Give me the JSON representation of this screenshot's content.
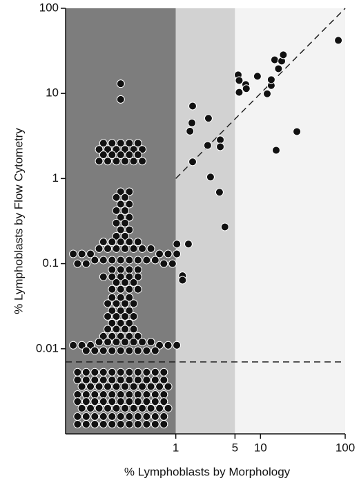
{
  "chart_data": {
    "type": "scatter",
    "xlabel": "% Lymphoblasts by Morphology",
    "ylabel": "% Lymphoblasts by Flow Cytometry",
    "xscale": "log",
    "yscale": "log",
    "xlim": [
      0.05,
      100
    ],
    "ylim": [
      0.001,
      100
    ],
    "xticks": [
      1,
      5,
      10,
      100
    ],
    "yticks": [
      100,
      10,
      1,
      0.1,
      0.01
    ],
    "regions": [
      {
        "to": 1,
        "color": "#7d7d7d"
      },
      {
        "to": 5,
        "color": "#d2d2d2"
      },
      {
        "to": 100,
        "color": "#f3f3f3"
      }
    ],
    "reference_lines": [
      {
        "type": "identity",
        "x": [
          1,
          100
        ]
      },
      {
        "type": "horizontal",
        "y": 0.007
      }
    ],
    "series": [
      {
        "color": "#111111",
        "values": [
          13,
          8.5,
          2.6,
          2.6,
          2.6,
          2.6,
          2.6,
          2.2,
          2.2,
          2.2,
          2.2,
          2.2,
          2.2,
          1.9,
          1.9,
          1.9,
          1.9,
          1.9,
          1.6,
          1.6,
          1.6,
          1.6,
          1.6,
          1.6,
          0.7,
          0.7,
          0.6,
          0.6,
          0.5,
          0.5,
          0.42,
          0.42,
          0.35,
          0.35,
          0.3,
          0.3,
          0.25,
          0.25,
          0.21,
          0.21,
          0.18,
          0.18,
          0.18,
          0.18,
          0.18,
          0.15,
          0.15,
          0.15,
          0.15,
          0.15,
          0.15,
          0.15,
          0.13,
          0.13,
          0.13,
          0.13,
          0.13,
          0.13,
          0.11,
          0.11,
          0.11,
          0.11,
          0.11,
          0.11,
          0.11,
          0.11,
          0.1,
          0.1,
          0.1,
          0.1,
          0.085,
          0.085,
          0.085,
          0.085,
          0.07,
          0.07,
          0.07,
          0.07,
          0.07,
          0.06,
          0.06,
          0.06,
          0.05,
          0.05,
          0.05,
          0.05,
          0.04,
          0.04,
          0.04,
          0.034,
          0.034,
          0.034,
          0.034,
          0.028,
          0.028,
          0.028,
          0.024,
          0.024,
          0.024,
          0.024,
          0.02,
          0.02,
          0.02,
          0.017,
          0.017,
          0.017,
          0.017,
          0.014,
          0.014,
          0.014,
          0.014,
          0.014,
          0.012,
          0.012,
          0.012,
          0.012,
          0.012,
          0.012,
          0.012,
          0.011,
          0.011,
          0.011,
          0.011,
          0.011,
          0.011,
          0.0095,
          0.0095,
          0.0095,
          0.0095,
          0.0095,
          0.0095,
          0.0095,
          0.0095,
          0.0095,
          0.0053,
          0.0053,
          0.0053,
          0.0053,
          0.0053,
          0.0053,
          0.0053,
          0.0053,
          0.0053,
          0.0053,
          0.0053,
          0.0043,
          0.0043,
          0.0043,
          0.0043,
          0.0043,
          0.0043,
          0.0043,
          0.0043,
          0.0043,
          0.0043,
          0.0043,
          0.0036,
          0.0036,
          0.0036,
          0.0036,
          0.0036,
          0.0036,
          0.0036,
          0.0036,
          0.0036,
          0.0036,
          0.0036,
          0.0029,
          0.0029,
          0.0029,
          0.0029,
          0.0029,
          0.0029,
          0.0029,
          0.0029,
          0.0029,
          0.0029,
          0.0029,
          0.0024,
          0.0024,
          0.0024,
          0.0024,
          0.0024,
          0.0024,
          0.0024,
          0.0024,
          0.0024,
          0.0024,
          0.0024,
          0.002,
          0.002,
          0.002,
          0.002,
          0.002,
          0.002,
          0.002,
          0.002,
          0.002,
          0.002,
          0.002,
          0.0016,
          0.0016,
          0.0016,
          0.0016,
          0.0016,
          0.0016,
          0.0016,
          0.0016,
          0.0016,
          0.0016,
          0.0016,
          0.0013,
          0.0013,
          0.0013,
          0.0013,
          0.0013,
          0.0013,
          0.0013,
          0.0013,
          0.0013,
          0.0013,
          0.0013
        ]
      },
      {
        "color": "#111111",
        "x": [
          1.03,
          1.41,
          1.2,
          1.2,
          1.58,
          1.55,
          1.58,
          1.47,
          2.43,
          2.38,
          2.57,
          3.35,
          3.35,
          3.28,
          3.8,
          5.45,
          5.6,
          5.6,
          6.7,
          6.8,
          9.2,
          12.0,
          13.4,
          13.4,
          14.7,
          16.3,
          17.8,
          18.6,
          15.3,
          26.9,
          83
        ],
        "values": [
          0.17,
          0.17,
          0.072,
          0.064,
          1.57,
          4.5,
          7.1,
          3.6,
          5.1,
          2.45,
          1.04,
          2.85,
          2.36,
          0.69,
          0.27,
          16.5,
          14.2,
          10.3,
          12.7,
          11.4,
          15.9,
          9.9,
          12.4,
          14.5,
          24.8,
          19.5,
          24,
          28.4,
          2.15,
          3.56,
          42
        ]
      }
    ]
  }
}
